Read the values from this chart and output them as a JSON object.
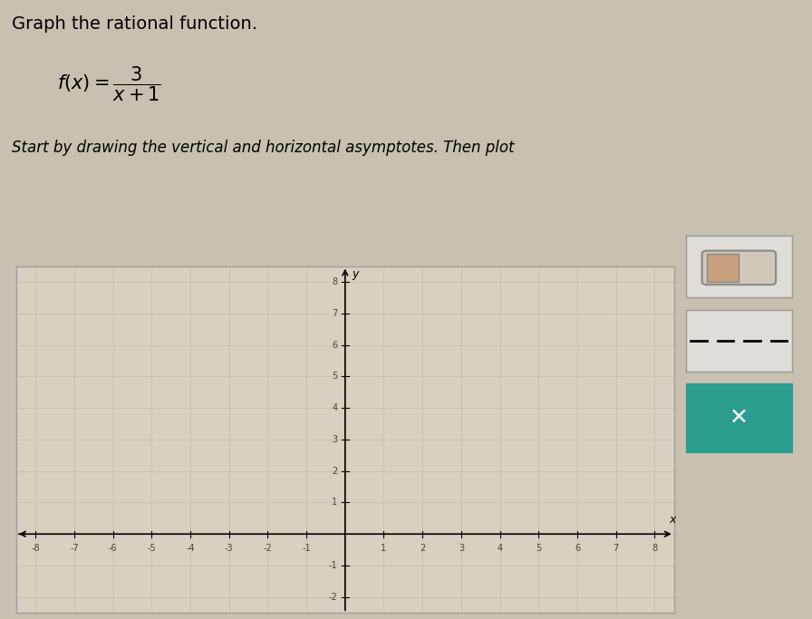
{
  "title": "Graph the rational function.",
  "formula_text": "f(x) = \\dfrac{3}{x+1}",
  "instruction": "Start by drawing the vertical and horizontal asymptotes. Then plot",
  "xlim": [
    -8.5,
    8.5
  ],
  "ylim": [
    -2.5,
    8.5
  ],
  "xticks": [
    -8,
    -7,
    -6,
    -5,
    -4,
    -3,
    -2,
    -1,
    1,
    2,
    3,
    4,
    5,
    6,
    7,
    8
  ],
  "yticks": [
    -2,
    -1,
    1,
    2,
    3,
    4,
    5,
    6,
    7,
    8
  ],
  "grid_color": "#c0b8a8",
  "background_color": "#c8c0b0",
  "plot_bg_color": "#d8d0c0",
  "plot_border_color": "#a0a0a0",
  "axis_color": "#000000",
  "tick_label_color": "#444444",
  "tick_label_size": 7,
  "title_fontsize": 14,
  "instruction_fontsize": 12,
  "ui_bg": "#e0ddd8",
  "ui_teal": "#2a9d8f",
  "ui_border": "#999999"
}
